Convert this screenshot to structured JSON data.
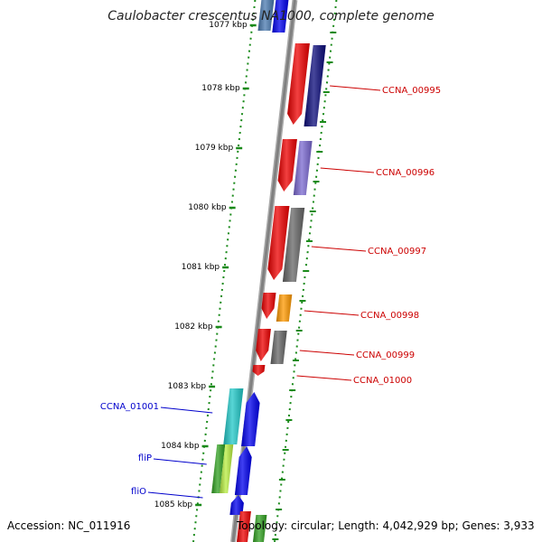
{
  "title": "Caulobacter crescentus NA1000, complete genome",
  "footer": {
    "accession": "Accession: NC_011916",
    "topology": "Topology: circular; Length: 4,042,929 bp; Genes: 3,933"
  },
  "kbp_labels": [
    "1077 kbp",
    "1078 kbp",
    "1079 kbp",
    "1080 kbp",
    "1081 kbp",
    "1082 kbp",
    "1083 kbp",
    "1084 kbp",
    "1085 kbp"
  ],
  "genes_right": [
    "CCNA_00995",
    "CCNA_00996",
    "CCNA_00997",
    "CCNA_00998",
    "CCNA_00999",
    "CCNA_01000"
  ],
  "genes_left": [
    "CCNA_01001",
    "fliP",
    "fliO"
  ],
  "colors": {
    "backbone": "#808080",
    "tick": "#1a8a1a",
    "gene_right_label": "#cc0000",
    "gene_left_label": "#0000cc",
    "cog_red": "#ee0000",
    "navy": "#0a0a7a",
    "lavender": "#7a68d0",
    "gray": "#666666",
    "orange": "#ff9900",
    "cyan": "#20c8c8",
    "blue": "#0000ee",
    "green": "#30a020",
    "lime": "#b8ee40",
    "steel": "#4a7ab0"
  }
}
